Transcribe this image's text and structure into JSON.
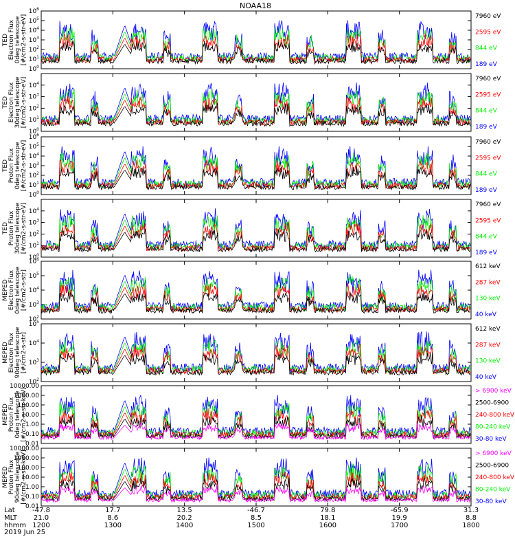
{
  "title": "NOAA18",
  "date_label": "2019 Jun 25",
  "x_axis": {
    "rows": [
      {
        "label": "Lat",
        "values": [
          "-47.8",
          "17.7",
          "13.5",
          "-46.7",
          "79.8",
          "-65.9",
          "31.3"
        ]
      },
      {
        "label": "MLT",
        "values": [
          "21.0",
          "8.6",
          "20.2",
          "8.5",
          "18.1",
          "19.9",
          "8.8"
        ]
      },
      {
        "label": "hhmm",
        "values": [
          "1200",
          "1300",
          "1400",
          "1500",
          "1600",
          "1700",
          "1800"
        ]
      }
    ],
    "tick_times_min": [
      0,
      60,
      120,
      180,
      240,
      300,
      360
    ]
  },
  "colors": {
    "blue": "#0000ff",
    "red": "#ff0000",
    "green": "#00ee00",
    "black": "#000000",
    "magenta": "#ff00ff"
  },
  "chart_data": [
    {
      "type": "line",
      "name": "panel-ted-electron-0deg",
      "ylabel": [
        "TED",
        "Electron Flux",
        "0deg telescope",
        "[#/cm2-s-str-eV]"
      ],
      "ylog": true,
      "ylim": [
        1,
        1000000
      ],
      "yticks": [
        1,
        10,
        100,
        1000,
        10000,
        100000,
        1000000
      ],
      "ytick_labels": [
        "10^0",
        "10^1",
        "10^2",
        "10^3",
        "10^4",
        "10^5",
        "10^6"
      ],
      "legend": [
        {
          "label": "7960 eV",
          "color": "black"
        },
        {
          "label": "2595 eV",
          "color": "red"
        },
        {
          "label": "844 eV",
          "color": "green"
        },
        {
          "label": "189 eV",
          "color": "blue"
        }
      ]
    },
    {
      "type": "line",
      "name": "panel-ted-electron-30deg",
      "ylabel": [
        "TED",
        "Electron Flux",
        "30deg telescope",
        "[#/cm2-s-str-eV]"
      ],
      "ylog": true,
      "ylim": [
        1,
        100000
      ],
      "yticks": [
        1,
        10,
        100,
        1000,
        10000
      ],
      "ytick_labels": [
        "10^0",
        "10^1",
        "10^2",
        "10^3",
        "10^4"
      ],
      "legend": [
        {
          "label": "7960 eV",
          "color": "black"
        },
        {
          "label": "2595 eV",
          "color": "red"
        },
        {
          "label": "844 eV",
          "color": "green"
        },
        {
          "label": "189 eV",
          "color": "blue"
        }
      ]
    },
    {
      "type": "line",
      "name": "panel-ted-proton-0deg",
      "ylabel": [
        "TED",
        "Proton Flux",
        "0deg telescope",
        "[#/cm2-s-str-eV]"
      ],
      "ylog": true,
      "ylim": [
        1,
        1000000
      ],
      "yticks": [
        1,
        10,
        100,
        1000,
        10000,
        100000,
        1000000
      ],
      "ytick_labels": [
        "10^0",
        "10^1",
        "10^2",
        "10^3",
        "10^4",
        "10^5",
        "10^6"
      ],
      "legend": [
        {
          "label": "7960 eV",
          "color": "black"
        },
        {
          "label": "2595 eV",
          "color": "red"
        },
        {
          "label": "844 eV",
          "color": "green"
        },
        {
          "label": "189 eV",
          "color": "blue"
        }
      ]
    },
    {
      "type": "line",
      "name": "panel-ted-proton-30deg",
      "ylabel": [
        "TED",
        "Proton Flux",
        "30deg telescope",
        "[#/cm2-s-str-eV]"
      ],
      "ylog": true,
      "ylim": [
        1,
        100000
      ],
      "yticks": [
        1,
        10,
        100,
        1000,
        10000
      ],
      "ytick_labels": [
        "10^0",
        "10^1",
        "10^2",
        "10^3",
        "10^4"
      ],
      "legend": [
        {
          "label": "7960 eV",
          "color": "black"
        },
        {
          "label": "2595 eV",
          "color": "red"
        },
        {
          "label": "844 eV",
          "color": "green"
        },
        {
          "label": "189 eV",
          "color": "blue"
        }
      ]
    },
    {
      "type": "line",
      "name": "panel-meped-electron-0deg",
      "ylabel": [
        "MEPED",
        "Electron Flux",
        "0deg telescope",
        "[#/cm2-s-str]"
      ],
      "ylog": true,
      "ylim": [
        100,
        1000000
      ],
      "yticks": [
        100,
        1000,
        10000,
        100000,
        1000000
      ],
      "ytick_labels": [
        "10^2",
        "10^3",
        "10^4",
        "10^5",
        "10^6"
      ],
      "legend": [
        {
          "label": "612 keV",
          "color": "black"
        },
        {
          "label": "287 keV",
          "color": "red"
        },
        {
          "label": "130 keV",
          "color": "green"
        },
        {
          "label": "40 keV",
          "color": "blue"
        }
      ]
    },
    {
      "type": "line",
      "name": "panel-meped-electron-90deg",
      "ylabel": [
        "MEPED",
        "Electron Flux",
        "90deg telescope",
        "[#/cm2-s-str]"
      ],
      "ylog": true,
      "ylim": [
        100,
        100000
      ],
      "yticks": [
        100,
        1000,
        10000,
        100000
      ],
      "ytick_labels": [
        "10^2",
        "10^3",
        "10^4",
        "10^5"
      ],
      "legend": [
        {
          "label": "612 keV",
          "color": "black"
        },
        {
          "label": "287 keV",
          "color": "red"
        },
        {
          "label": "130 keV",
          "color": "green"
        },
        {
          "label": "40 keV",
          "color": "blue"
        }
      ]
    },
    {
      "type": "line",
      "name": "panel-meped-proton-0deg",
      "ylabel": [
        "MEPED",
        "Proton Flux",
        "0deg telescope",
        "[#/cm2-s-str-keV]"
      ],
      "ylog": true,
      "ylim": [
        0.01,
        10000
      ],
      "yticks": [
        0.01,
        0.1,
        1,
        10,
        100,
        1000,
        10000
      ],
      "ytick_labels": [
        "0.01",
        "0.10",
        "1.00",
        "10.00",
        "100.00",
        "1000.00",
        "10000.00"
      ],
      "legend": [
        {
          "label": "> 6900 keV",
          "color": "magenta"
        },
        {
          "label": "2500-6900",
          "color": "black"
        },
        {
          "label": "240-800 keV",
          "color": "red"
        },
        {
          "label": "80-240 keV",
          "color": "green"
        },
        {
          "label": "30-80 keV",
          "color": "blue"
        }
      ]
    },
    {
      "type": "line",
      "name": "panel-meped-proton-90deg",
      "ylabel": [
        "MEPED",
        "Proton Flux",
        "90deg telescope",
        "[#/cm2-s-str-keV]"
      ],
      "ylog": true,
      "ylim": [
        0.01,
        10000
      ],
      "yticks": [
        0.01,
        0.1,
        1,
        10,
        100,
        1000,
        10000
      ],
      "ytick_labels": [
        "0.01",
        "0.10",
        "1.00",
        "10.00",
        "100.00",
        "1000.00",
        "10000.00"
      ],
      "legend": [
        {
          "label": "> 6900 keV",
          "color": "magenta"
        },
        {
          "label": "2500-6900",
          "color": "black"
        },
        {
          "label": "240-800 keV",
          "color": "red"
        },
        {
          "label": "80-240 keV",
          "color": "green"
        },
        {
          "label": "30-80 keV",
          "color": "blue"
        }
      ]
    }
  ]
}
